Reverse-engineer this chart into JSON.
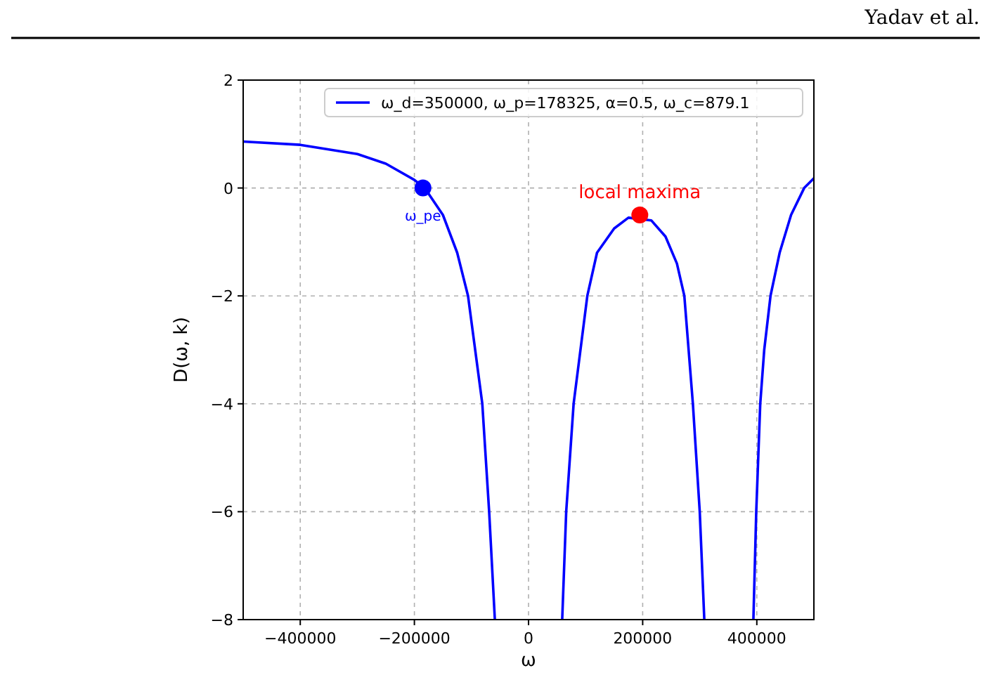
{
  "chart_data": {
    "type": "line",
    "xlabel": "ω",
    "ylabel": "D(ω, k)",
    "xlim": [
      -500000,
      500000
    ],
    "ylim": [
      -8,
      2
    ],
    "xticks": [
      -400000,
      -200000,
      0,
      200000,
      400000
    ],
    "yticks": [
      -8,
      -6,
      -4,
      -2,
      0,
      2
    ],
    "grid": true,
    "legend": "top right",
    "line_style": "solid",
    "series": [
      {
        "name": "ω_d=350000, ω_p=178325, α=0.5, ω_c=879.1",
        "color": "#0000ff",
        "marker": "none",
        "x": [
          -500000,
          -400000,
          -300000,
          -250000,
          -200000,
          -182000,
          -150000,
          -125000,
          -106000,
          -81000,
          -69000,
          -59000,
          null,
          59000,
          66000,
          79000,
          103000,
          120000,
          150000,
          175000,
          215000,
          240000,
          260000,
          273000,
          288000,
          300000,
          308000,
          null,
          394000,
          399000,
          406000,
          413000,
          424000,
          440000,
          460000,
          483000,
          500000
        ],
        "values": [
          0.86,
          0.8,
          0.63,
          0.45,
          0.15,
          0,
          -0.5,
          -1.2,
          -2,
          -4,
          -6,
          -8,
          null,
          -8,
          -6,
          -4,
          -2,
          -1.2,
          -0.75,
          -0.55,
          -0.6,
          -0.9,
          -1.4,
          -2,
          -4,
          -6,
          -8,
          null,
          -8,
          -6,
          -4,
          -3,
          -2,
          -1.2,
          -0.5,
          0,
          0.18
        ]
      },
      {
        "type": "scatter",
        "color": "#0000ff",
        "marker": "circle",
        "x": [
          -185000
        ],
        "values": [
          0
        ]
      },
      {
        "type": "scatter",
        "color": "#ff0000",
        "marker": "circle",
        "x": [
          195000
        ],
        "values": [
          -0.5
        ]
      }
    ],
    "annotations": [
      {
        "text": "ω_pe",
        "x": -185000,
        "y": 0
      },
      {
        "text": "local maxima",
        "x": 195000,
        "y": -0.5
      },
      "Yadav et al."
    ]
  }
}
